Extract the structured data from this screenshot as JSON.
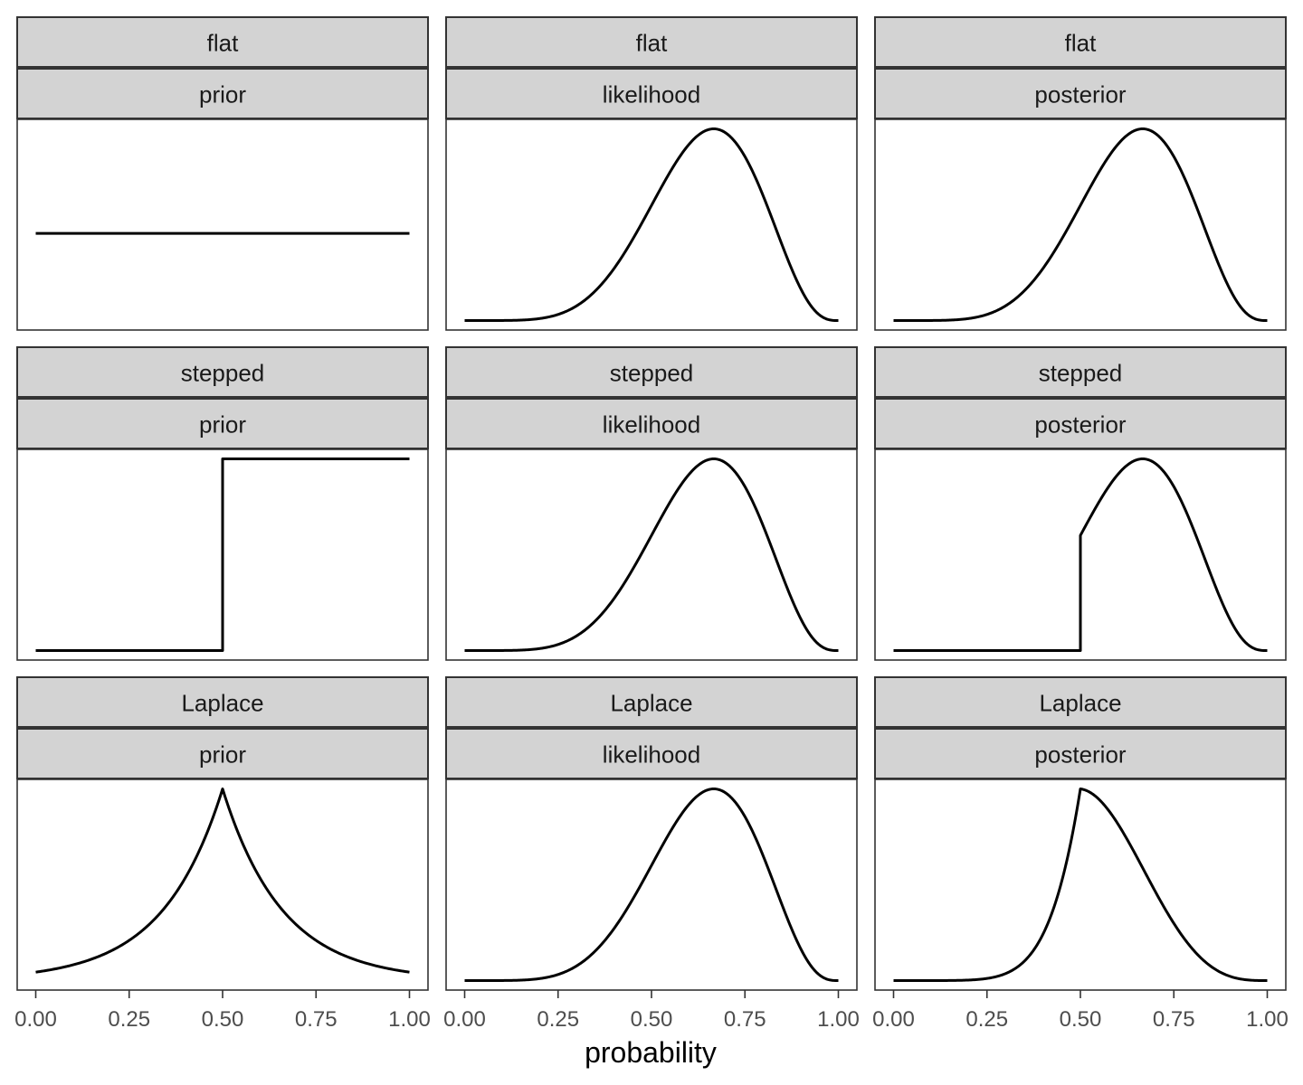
{
  "chart_data": {
    "type": "line",
    "xlabel": "probability",
    "ylabel": "",
    "xlim": [
      0,
      1
    ],
    "x_ticks": [
      "0.00",
      "0.25",
      "0.50",
      "0.75",
      "1.00"
    ],
    "y_scale": "free per panel, y axis not shown",
    "grid": false,
    "legend": "none",
    "line_color": "#000000",
    "strip_color": "#d3d3d3",
    "facet_rows": [
      "flat",
      "stepped",
      "Laplace"
    ],
    "facet_cols": [
      "prior",
      "likelihood",
      "posterior"
    ],
    "panels": [
      {
        "row": "flat",
        "col": "prior",
        "curve": "constant",
        "x": [
          0,
          1
        ],
        "y": [
          1,
          1
        ],
        "ylim": [
          0,
          2.2
        ]
      },
      {
        "row": "flat",
        "col": "likelihood",
        "curve": "binomial (6 of 9)",
        "x_peak": 0.667
      },
      {
        "row": "flat",
        "col": "posterior",
        "curve": "binomial (6 of 9)",
        "x_peak": 0.667
      },
      {
        "row": "stepped",
        "col": "prior",
        "curve": "step",
        "x": [
          0,
          0.5,
          0.5,
          1
        ],
        "y": [
          0,
          0,
          1,
          1
        ]
      },
      {
        "row": "stepped",
        "col": "likelihood",
        "curve": "binomial (6 of 9)",
        "x_peak": 0.667
      },
      {
        "row": "stepped",
        "col": "posterior",
        "curve": "binomial (6 of 9) truncated below 0.5",
        "x_peak": 0.667,
        "step_at": 0.5
      },
      {
        "row": "Laplace",
        "col": "prior",
        "curve": "Laplace",
        "x_peak": 0.5
      },
      {
        "row": "Laplace",
        "col": "likelihood",
        "curve": "binomial (6 of 9)",
        "x_peak": 0.667
      },
      {
        "row": "Laplace",
        "col": "posterior",
        "curve": "binomial (6 of 9) × Laplace",
        "x_peak": 0.556
      }
    ]
  }
}
